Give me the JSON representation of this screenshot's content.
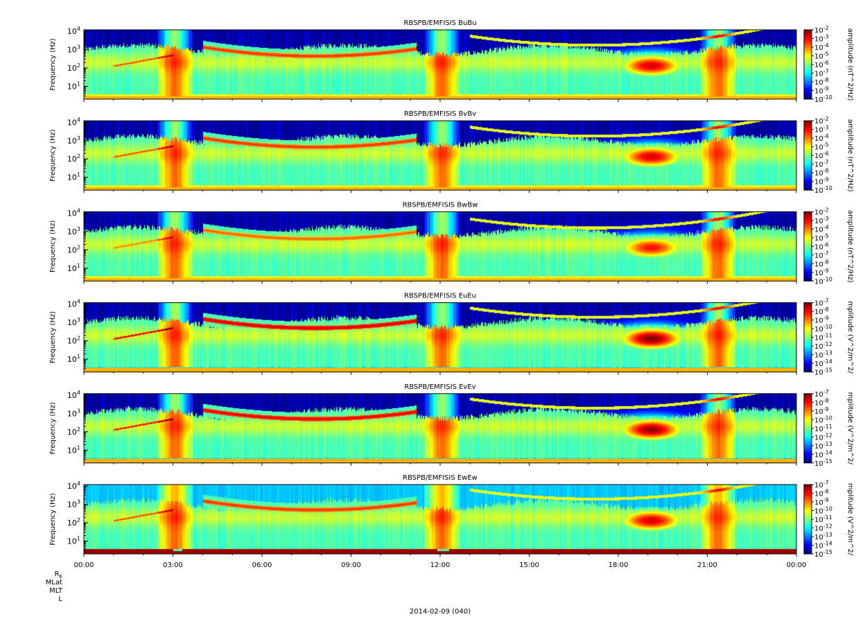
{
  "chart_data": [
    {
      "type": "heatmap",
      "title": "RBSPB/EMFISIS  BuBu",
      "ylabel": "Frequency (Hz)",
      "yscale": "log",
      "ylim": [
        2,
        12000
      ],
      "yticks": [
        {
          "exp": "1"
        },
        {
          "exp": "2"
        },
        {
          "exp": "3"
        },
        {
          "exp": "4"
        }
      ],
      "colorbar": {
        "label": "amplitude (nT^2/Hz)",
        "scale": "log",
        "range": [
          1e-10,
          0.01
        ],
        "ticks": [
          "-2",
          "-3",
          "-4",
          "-5",
          "-6",
          "-7",
          "-8",
          "-9",
          "-10"
        ]
      },
      "features": {
        "chorus_base": 2.65,
        "bottom": "green",
        "hi_bg": "dark",
        "bright": 0.0
      }
    },
    {
      "type": "heatmap",
      "title": "RBSPB/EMFISIS  BvBv",
      "ylabel": "Frequency (Hz)",
      "yscale": "log",
      "ylim": [
        2,
        12000
      ],
      "yticks": [
        {
          "exp": "1"
        },
        {
          "exp": "2"
        },
        {
          "exp": "3"
        },
        {
          "exp": "4"
        }
      ],
      "colorbar": {
        "label": "amplitude (nT^2/Hz)",
        "scale": "log",
        "range": [
          1e-10,
          0.01
        ],
        "ticks": [
          "-2",
          "-3",
          "-4",
          "-5",
          "-6",
          "-7",
          "-8",
          "-9",
          "-10"
        ]
      },
      "features": {
        "chorus_base": 2.65,
        "bottom": "green",
        "hi_bg": "dark",
        "bright": 0.0
      }
    },
    {
      "type": "heatmap",
      "title": "RBSPB/EMFISIS  BwBw",
      "ylabel": "Frequency (Hz)",
      "yscale": "log",
      "ylim": [
        2,
        12000
      ],
      "yticks": [
        {
          "exp": "1"
        },
        {
          "exp": "2"
        },
        {
          "exp": "3"
        },
        {
          "exp": "4"
        }
      ],
      "colorbar": {
        "label": "amplitude (nT^2/Hz)",
        "scale": "log",
        "range": [
          1e-10,
          0.01
        ],
        "ticks": [
          "-2",
          "-3",
          "-4",
          "-5",
          "-6",
          "-7",
          "-8",
          "-9",
          "-10"
        ]
      },
      "features": {
        "chorus_base": 2.6,
        "bottom": "green",
        "hi_bg": "dark",
        "bright": -0.05
      }
    },
    {
      "type": "heatmap",
      "title": "RBSPB/EMFISIS  EuEu",
      "ylabel": "Frequency (Hz)",
      "yscale": "log",
      "ylim": [
        2,
        12000
      ],
      "yticks": [
        {
          "exp": "1"
        },
        {
          "exp": "2"
        },
        {
          "exp": "3"
        },
        {
          "exp": "4"
        }
      ],
      "colorbar": {
        "label": "mplitude (V^2/m^2/",
        "scale": "log",
        "range": [
          1e-15,
          1e-07
        ],
        "ticks": [
          "-7",
          "-8",
          "-9",
          "-10",
          "-11",
          "-12",
          "-13",
          "-14",
          "-15"
        ]
      },
      "features": {
        "chorus_base": 2.7,
        "bottom": "blue",
        "hi_bg": "dark",
        "bright": 0.08
      }
    },
    {
      "type": "heatmap",
      "title": "RBSPB/EMFISIS  EvEv",
      "ylabel": "Frequency (Hz)",
      "yscale": "log",
      "ylim": [
        2,
        12000
      ],
      "yticks": [
        {
          "exp": "1"
        },
        {
          "exp": "2"
        },
        {
          "exp": "3"
        },
        {
          "exp": "4"
        }
      ],
      "colorbar": {
        "label": "mplitude (V^2/m^2/",
        "scale": "log",
        "range": [
          1e-15,
          1e-07
        ],
        "ticks": [
          "-7",
          "-8",
          "-9",
          "-10",
          "-11",
          "-12",
          "-13",
          "-14",
          "-15"
        ]
      },
      "features": {
        "chorus_base": 2.7,
        "bottom": "blue",
        "hi_bg": "dark",
        "bright": 0.06
      }
    },
    {
      "type": "heatmap",
      "title": "RBSPB/EMFISIS  EwEw",
      "ylabel": "Frequency (Hz)",
      "yscale": "log",
      "ylim": [
        2,
        12000
      ],
      "yticks": [
        {
          "exp": "1"
        },
        {
          "exp": "2"
        },
        {
          "exp": "3"
        },
        {
          "exp": "4"
        }
      ],
      "colorbar": {
        "label": "mplitude (V^2/m^2/",
        "scale": "log",
        "range": [
          1e-15,
          1e-07
        ],
        "ticks": [
          "-7",
          "-8",
          "-9",
          "-10",
          "-11",
          "-12",
          "-13",
          "-14",
          "-15"
        ]
      },
      "features": {
        "chorus_base": 2.7,
        "bottom": "red",
        "hi_bg": "light",
        "bright": 0.0
      }
    }
  ],
  "x_axis": {
    "range": [
      "2014-02-09 00:00",
      "2014-02-10 00:00"
    ],
    "tick_labels": [
      "00:00",
      "03:00",
      "06:00",
      "09:00",
      "12:00",
      "15:00",
      "18:00",
      "21:00",
      "00:00"
    ],
    "minor_per_major": 3
  },
  "ephemeris_labels": [
    {
      "main": "R",
      "sub": "E"
    },
    {
      "main": "MLat",
      "sub": ""
    },
    {
      "main": "MLT",
      "sub": ""
    },
    {
      "main": "L",
      "sub": ""
    }
  ],
  "date_label": "2014-02-09 (040)",
  "tick_base": "10",
  "colors": {
    "jet": [
      "#00007f",
      "#0000ff",
      "#007fff",
      "#00ffff",
      "#7fff7f",
      "#ffff00",
      "#ff7f00",
      "#ff0000",
      "#7f0000"
    ],
    "background_dark": "#000000",
    "light_background": "#5fc8ff"
  }
}
